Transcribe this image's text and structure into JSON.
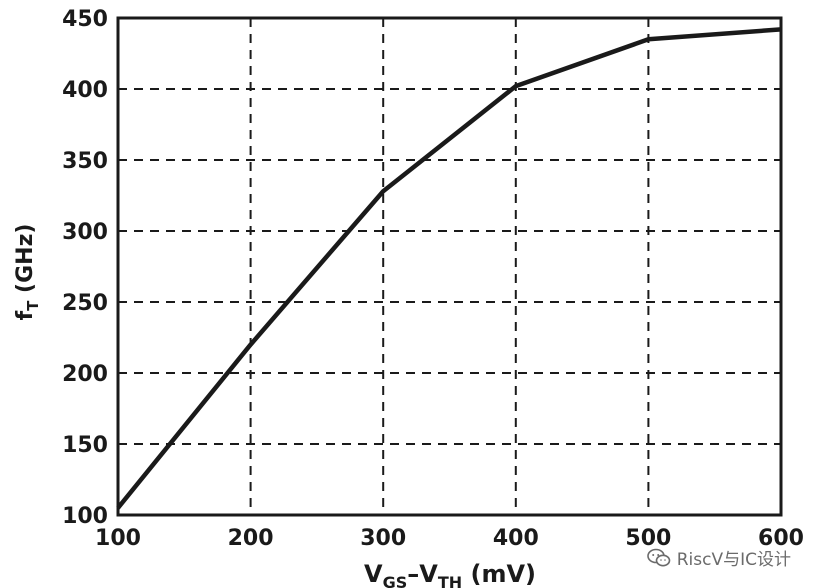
{
  "chart_data": {
    "type": "line",
    "title": "",
    "xlabel": {
      "main": "V",
      "sub1": "GS",
      "dash": "–",
      "main2": "V",
      "sub2": "TH",
      "unit": " (mV)"
    },
    "ylabel": {
      "main": "f",
      "sub": "T",
      "unit": " (GHz)"
    },
    "xlim": [
      100,
      600
    ],
    "ylim": [
      100,
      450
    ],
    "xticks": [
      100,
      200,
      300,
      400,
      500,
      600
    ],
    "yticks": [
      100,
      150,
      200,
      250,
      300,
      350,
      400,
      450
    ],
    "grid": true,
    "series": [
      {
        "x": [
          100,
          200,
          300,
          400,
          500,
          600
        ],
        "y": [
          105,
          220,
          328,
          402,
          435,
          442
        ]
      }
    ]
  },
  "watermark": {
    "text": "RiscV与IC设计",
    "icon": "wechat-icon"
  }
}
